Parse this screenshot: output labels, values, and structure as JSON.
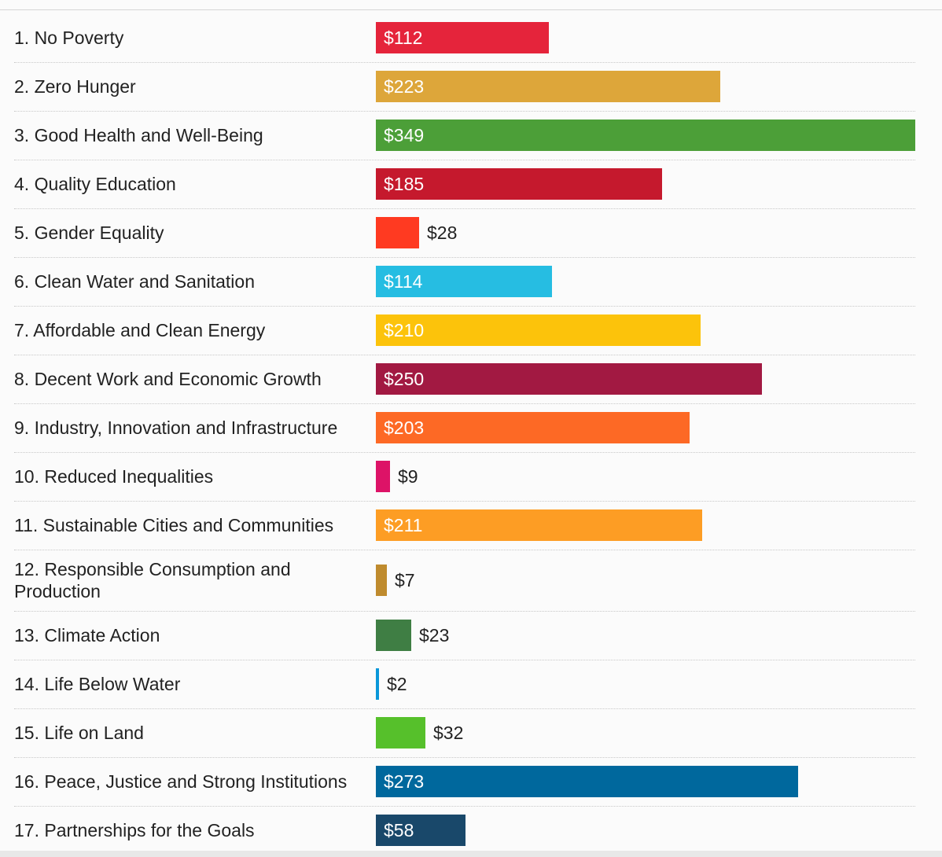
{
  "chart_data": {
    "type": "bar",
    "orientation": "horizontal",
    "categories": [
      "1. No Poverty",
      "2. Zero Hunger",
      "3. Good Health and Well-Being",
      "4. Quality Education",
      "5. Gender Equality",
      "6. Clean Water and Sanitation",
      "7. Affordable and Clean Energy",
      "8. Decent Work and Economic Growth",
      "9. Industry, Innovation and Infrastructure",
      "10. Reduced Inequalities",
      "11. Sustainable Cities and Communities",
      "12. Responsible Consumption and Production",
      "13. Climate Action",
      "14. Life Below Water",
      "15. Life on Land",
      "16. Peace, Justice and Strong Institutions",
      "17. Partnerships for the Goals"
    ],
    "values": [
      112,
      223,
      349,
      185,
      28,
      114,
      210,
      250,
      203,
      9,
      211,
      7,
      23,
      2,
      32,
      273,
      58
    ],
    "value_labels": [
      "$112",
      "$223",
      "$349",
      "$185",
      "$28",
      "$114",
      "$210",
      "$250",
      "$203",
      "$9",
      "$211",
      "$7",
      "$23",
      "$2",
      "$32",
      "$273",
      "$58"
    ],
    "colors": [
      "#e5243b",
      "#dda63a",
      "#4c9f38",
      "#c5192d",
      "#ff3a21",
      "#26bde2",
      "#fcc30b",
      "#a21942",
      "#fd6925",
      "#dd1367",
      "#fd9d24",
      "#bf8b2e",
      "#3f7e44",
      "#0a97d9",
      "#56c02b",
      "#00689d",
      "#19486a"
    ],
    "xlim": [
      0,
      349
    ],
    "grid": false,
    "legend": "none"
  }
}
